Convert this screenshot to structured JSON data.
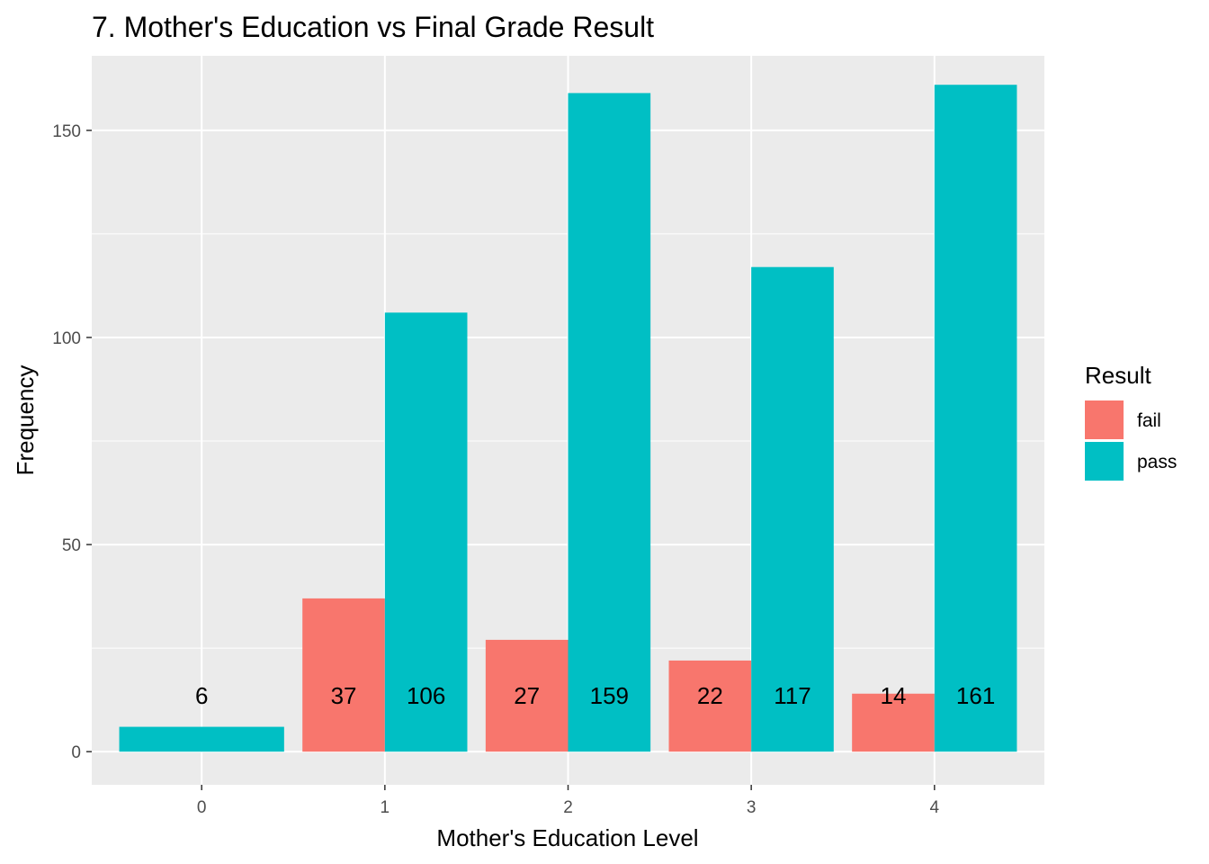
{
  "chart_data": {
    "type": "bar",
    "title": "7. Mother's Education vs Final Grade Result",
    "xlabel": "Mother's Education Level",
    "ylabel": "Frequency",
    "categories": [
      "0",
      "1",
      "2",
      "3",
      "4"
    ],
    "series": [
      {
        "name": "fail",
        "color": "#F8766D",
        "values": [
          null,
          37,
          27,
          22,
          14
        ]
      },
      {
        "name": "pass",
        "color": "#00BFC4",
        "values": [
          6,
          106,
          159,
          117,
          161
        ]
      }
    ],
    "ylim": [
      -8,
      168
    ],
    "yticks": [
      0,
      50,
      100,
      150
    ],
    "grid": true,
    "legend": {
      "title": "Result",
      "position": "right"
    },
    "panel_color": "#EBEBEB",
    "grid_color": "#FFFFFF"
  }
}
